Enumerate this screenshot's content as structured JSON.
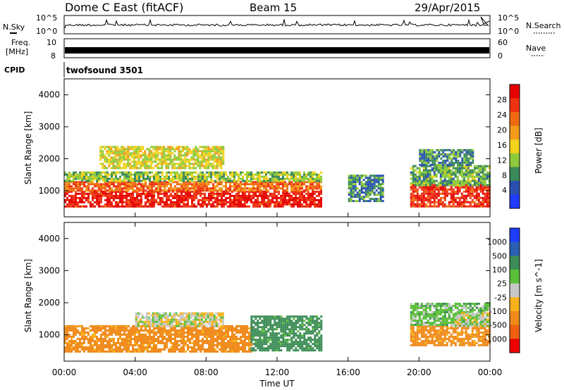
{
  "header": {
    "title": "Dome C East (fitACF)",
    "beam": "Beam 15",
    "date": "29/Apr/2015"
  },
  "noise_panel": {
    "left_label": "N.Sky",
    "right_label": "N.Search",
    "left_ticks": [
      "10^5",
      "10^0"
    ],
    "right_ticks": [
      "10^5",
      "10^0"
    ]
  },
  "freq_panel": {
    "left_label_1": "Freq.",
    "left_label_2": "[MHz]",
    "left_ticks": [
      "10",
      "8"
    ],
    "right_label": "Nave",
    "right_ticks": [
      "60",
      "0"
    ]
  },
  "cpid": {
    "label": "CPID",
    "value": "twofsound 3501"
  },
  "colors": {
    "power": [
      "#1f3cff",
      "#2a4fb0",
      "#3a8a5a",
      "#8fca3a",
      "#f2d21a",
      "#f39a1a",
      "#f06a12",
      "#ee3212",
      "#e60000"
    ],
    "velocity": [
      "#ee0000",
      "#f06010",
      "#f08a1a",
      "#f7b21a",
      "#c8c8c8",
      "#5bbf3a",
      "#3b8c55",
      "#2a5fb4",
      "#1f3cff"
    ]
  },
  "chart_data": [
    {
      "type": "heatmap",
      "panel": "power",
      "ylabel": "Slant Range [km]",
      "xlabel": "Time UT",
      "x_ticks": [
        "00:00",
        "04:00",
        "08:00",
        "12:00",
        "16:00",
        "20:00",
        "00:00"
      ],
      "xlim_hours": [
        0,
        24
      ],
      "y_ticks": [
        1000,
        2000,
        3000,
        4000
      ],
      "ylim_km": [
        180,
        4500
      ],
      "colorbar": {
        "label": "Power [dB]",
        "ticks": [
          "28",
          "24",
          "20",
          "16",
          "12",
          "8",
          "4"
        ],
        "range": [
          0,
          30
        ]
      },
      "regions": [
        {
          "t0": 0.0,
          "t1": 14.5,
          "r0": 500,
          "r1": 1000,
          "value": 27
        },
        {
          "t0": 0.0,
          "t1": 14.5,
          "r0": 1000,
          "r1": 1300,
          "value": 22
        },
        {
          "t0": 0.0,
          "t1": 14.5,
          "r0": 1300,
          "r1": 1600,
          "value": 12
        },
        {
          "t0": 2.0,
          "t1": 9.0,
          "r0": 1700,
          "r1": 2400,
          "value": 14
        },
        {
          "t0": 16.0,
          "t1": 18.0,
          "r0": 700,
          "r1": 1500,
          "value": 8
        },
        {
          "t0": 19.5,
          "t1": 24.0,
          "r0": 500,
          "r1": 1200,
          "value": 26
        },
        {
          "t0": 19.5,
          "t1": 24.0,
          "r0": 1200,
          "r1": 1800,
          "value": 10
        },
        {
          "t0": 20.0,
          "t1": 23.0,
          "r0": 1800,
          "r1": 2300,
          "value": 8
        }
      ]
    },
    {
      "type": "heatmap",
      "panel": "velocity",
      "ylabel": "Slant Range [km]",
      "xlabel": "Time UT",
      "x_ticks": [
        "00:00",
        "04:00",
        "08:00",
        "12:00",
        "16:00",
        "20:00",
        "00:00"
      ],
      "xlim_hours": [
        0,
        24
      ],
      "y_ticks": [
        1000,
        2000,
        3000,
        4000
      ],
      "ylim_km": [
        180,
        4500
      ],
      "colorbar": {
        "label": "Velocity [m s^-1]",
        "ticks": [
          "1000",
          "500",
          "100",
          "25",
          "-25",
          "-100",
          "-500",
          "-1000"
        ]
      },
      "regions": [
        {
          "t0": 0.0,
          "t1": 10.5,
          "r0": 500,
          "r1": 1300,
          "value": -150
        },
        {
          "t0": 4.0,
          "t1": 9.0,
          "r0": 1300,
          "r1": 1700,
          "value": 0
        },
        {
          "t0": 10.5,
          "t1": 14.5,
          "r0": 500,
          "r1": 1600,
          "value": 150
        },
        {
          "t0": 19.5,
          "t1": 24.0,
          "r0": 700,
          "r1": 1300,
          "value": -150
        },
        {
          "t0": 19.5,
          "t1": 24.0,
          "r0": 1300,
          "r1": 2000,
          "value": 60
        },
        {
          "t0": 22.0,
          "t1": 24.0,
          "r0": 1300,
          "r1": 1700,
          "value": 0
        }
      ]
    }
  ]
}
